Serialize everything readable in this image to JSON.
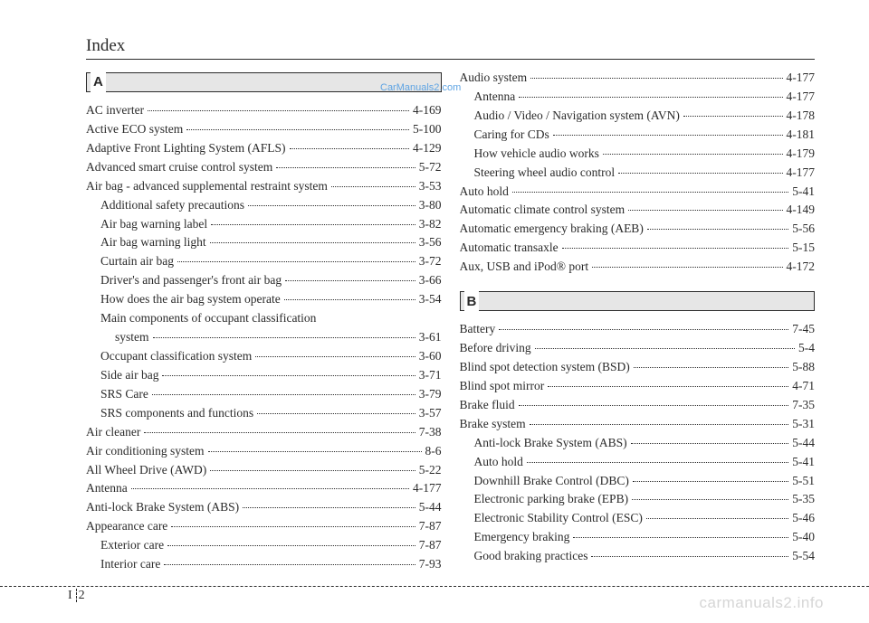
{
  "header": "Index",
  "watermark": "CarManuals2.com",
  "site_watermark": "carmanuals2.info",
  "footer": {
    "index": "I",
    "page": "2"
  },
  "left": {
    "letter": "A",
    "entries": [
      {
        "label": "AC inverter",
        "page": "4-169",
        "level": 0
      },
      {
        "label": "Active ECO system",
        "page": "5-100",
        "level": 0
      },
      {
        "label": "Adaptive Front Lighting System (AFLS)",
        "page": "4-129",
        "level": 0
      },
      {
        "label": "Advanced smart cruise control system",
        "page": "5-72",
        "level": 0
      },
      {
        "label": "Air bag - advanced supplemental restraint system",
        "page": "3-53",
        "level": 0
      },
      {
        "label": "Additional safety precautions",
        "page": "3-80",
        "level": 1
      },
      {
        "label": "Air bag warning label",
        "page": "3-82",
        "level": 1
      },
      {
        "label": "Air bag warning light",
        "page": "3-56",
        "level": 1
      },
      {
        "label": "Curtain air bag",
        "page": "3-72",
        "level": 1
      },
      {
        "label": "Driver's and passenger's front air bag",
        "page": "3-66",
        "level": 1
      },
      {
        "label": "How does the air bag system operate",
        "page": "3-54",
        "level": 1
      },
      {
        "label": "Main components of occupant classification",
        "page": null,
        "level": 1,
        "wrap": true
      },
      {
        "label": "system",
        "page": "3-61",
        "level": 2
      },
      {
        "label": "Occupant classification system",
        "page": "3-60",
        "level": 1
      },
      {
        "label": "Side air bag",
        "page": "3-71",
        "level": 1
      },
      {
        "label": "SRS Care",
        "page": "3-79",
        "level": 1
      },
      {
        "label": "SRS components and functions",
        "page": "3-57",
        "level": 1
      },
      {
        "label": "Air cleaner",
        "page": "7-38",
        "level": 0
      },
      {
        "label": "Air conditioning system",
        "page": "8-6",
        "level": 0
      },
      {
        "label": "All Wheel Drive (AWD)",
        "page": "5-22",
        "level": 0
      },
      {
        "label": "Antenna",
        "page": "4-177",
        "level": 0
      },
      {
        "label": "Anti-lock Brake System (ABS)",
        "page": "5-44",
        "level": 0
      },
      {
        "label": "Appearance care",
        "page": "7-87",
        "level": 0
      },
      {
        "label": "Exterior care",
        "page": "7-87",
        "level": 1
      },
      {
        "label": "Interior care",
        "page": "7-93",
        "level": 1
      }
    ]
  },
  "right_top": [
    {
      "label": "Audio system",
      "page": "4-177",
      "level": 0
    },
    {
      "label": "Antenna",
      "page": "4-177",
      "level": 1
    },
    {
      "label": "Audio / Video / Navigation system (AVN)",
      "page": "4-178",
      "level": 1
    },
    {
      "label": "Caring for CDs",
      "page": "4-181",
      "level": 1
    },
    {
      "label": "How vehicle audio works",
      "page": "4-179",
      "level": 1
    },
    {
      "label": "Steering wheel audio control",
      "page": "4-177",
      "level": 1
    },
    {
      "label": "Auto hold",
      "page": "5-41",
      "level": 0
    },
    {
      "label": "Automatic climate control system",
      "page": "4-149",
      "level": 0
    },
    {
      "label": "Automatic emergency braking (AEB)",
      "page": "5-56",
      "level": 0
    },
    {
      "label": "Automatic transaxle",
      "page": "5-15",
      "level": 0
    },
    {
      "label": "Aux, USB and iPod® port",
      "page": "4-172",
      "level": 0
    }
  ],
  "right_section": {
    "letter": "B",
    "entries": [
      {
        "label": "Battery",
        "page": "7-45",
        "level": 0
      },
      {
        "label": "Before driving",
        "page": "5-4",
        "level": 0
      },
      {
        "label": "Blind spot detection system (BSD)",
        "page": "5-88",
        "level": 0
      },
      {
        "label": "Blind spot mirror",
        "page": "4-71",
        "level": 0
      },
      {
        "label": "Brake fluid",
        "page": "7-35",
        "level": 0
      },
      {
        "label": "Brake system",
        "page": "5-31",
        "level": 0
      },
      {
        "label": "Anti-lock Brake System (ABS)",
        "page": "5-44",
        "level": 1
      },
      {
        "label": "Auto hold",
        "page": "5-41",
        "level": 1
      },
      {
        "label": "Downhill Brake Control (DBC)",
        "page": "5-51",
        "level": 1
      },
      {
        "label": "Electronic parking brake (EPB)",
        "page": "5-35",
        "level": 1
      },
      {
        "label": "Electronic Stability Control (ESC)",
        "page": "5-46",
        "level": 1
      },
      {
        "label": "Emergency braking",
        "page": "5-40",
        "level": 1
      },
      {
        "label": "Good braking practices",
        "page": "5-54",
        "level": 1
      }
    ]
  }
}
